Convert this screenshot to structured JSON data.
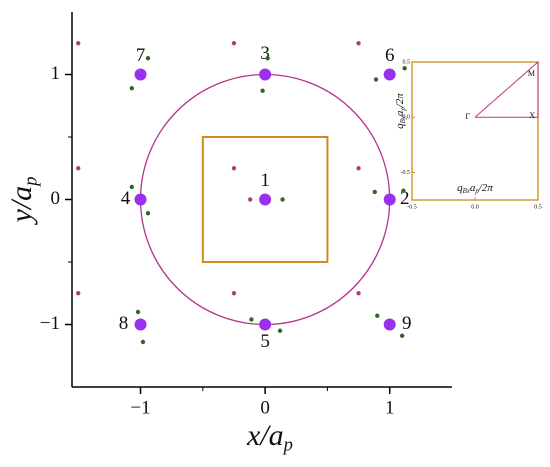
{
  "chart_data": {
    "type": "scatter",
    "xlabel": [
      "x/a",
      "p"
    ],
    "ylabel": [
      "y/a",
      "p"
    ],
    "xlim": [
      -1.55,
      1.5
    ],
    "ylim": [
      -1.5,
      1.5
    ],
    "xticks": [
      {
        "value": -1,
        "label": "−1"
      },
      0,
      1
    ],
    "yticks": [
      {
        "value": -1,
        "label": "−1"
      },
      0,
      1
    ],
    "xminor": [
      -0.5,
      0.5
    ],
    "yminor": [
      -0.5,
      0.5
    ],
    "series": [
      {
        "color": "#9b2ff0",
        "marker": "large",
        "x": [
          0,
          1,
          0,
          -1,
          0,
          1,
          -1,
          -1,
          1
        ],
        "y": [
          0,
          0,
          1,
          0,
          -1,
          1,
          1,
          -1,
          -1
        ],
        "labels": [
          "1",
          "2",
          "3",
          "4",
          "5",
          "6",
          "7",
          "8",
          "9"
        ]
      },
      {
        "color": "#b03a86",
        "marker": "small",
        "x": [
          -1.5,
          -0.25,
          0.75,
          -1.5,
          -0.25,
          0.75,
          -1.5,
          -0.25,
          0.75,
          -0.12
        ],
        "y": [
          1.25,
          1.25,
          1.25,
          0.25,
          0.25,
          0.25,
          -0.75,
          -0.75,
          -0.75,
          0
        ]
      },
      {
        "color": "#2e6b1e",
        "marker": "small",
        "x": [
          -0.94,
          -1.07,
          0.02,
          -0.02,
          0.89,
          1.12,
          -1.07,
          -0.94,
          0.88,
          1.11,
          0.14,
          -1.02,
          -0.98,
          -0.11,
          0.12,
          0.9,
          1.1
        ],
        "y": [
          1.13,
          0.89,
          1.13,
          0.87,
          0.96,
          1.05,
          0.1,
          -0.11,
          0.06,
          0.07,
          0,
          -0.9,
          -1.14,
          -0.96,
          -1.05,
          -0.93,
          -1.09
        ]
      }
    ],
    "shapes": [
      {
        "type": "circle",
        "center": [
          0,
          0
        ],
        "radius": 1,
        "color": "#b5338a"
      },
      {
        "type": "rect",
        "x": [
          -0.5,
          0.5
        ],
        "y": [
          -0.5,
          0.5
        ],
        "color": "#d08c1a"
      }
    ],
    "inset": {
      "frame_color": "#d08c1a",
      "line_color": "#c2338e",
      "xlabel": [
        "q",
        "Bx",
        "a",
        "p",
        "/2π"
      ],
      "ylabel": [
        "q",
        "By",
        "a",
        "p",
        "/2π"
      ],
      "xlim": [
        -0.5,
        0.5
      ],
      "ylim": [
        -0.75,
        0.5
      ],
      "xticks": [
        -0.5,
        {
          "value": 0,
          "label": "0.0"
        },
        0.5
      ],
      "yticks": [
        -0.5,
        {
          "value": 0,
          "label": "0.0"
        },
        0.5
      ],
      "path": {
        "x": [
          0,
          0.5,
          0.5,
          0
        ],
        "y": [
          0,
          0,
          0.5,
          0
        ]
      },
      "points": [
        {
          "label": "Γ",
          "x": 0,
          "y": 0
        },
        {
          "label": "X",
          "x": 0.5,
          "y": 0
        },
        {
          "label": "M",
          "x": 0.5,
          "y": 0.5
        }
      ]
    }
  }
}
